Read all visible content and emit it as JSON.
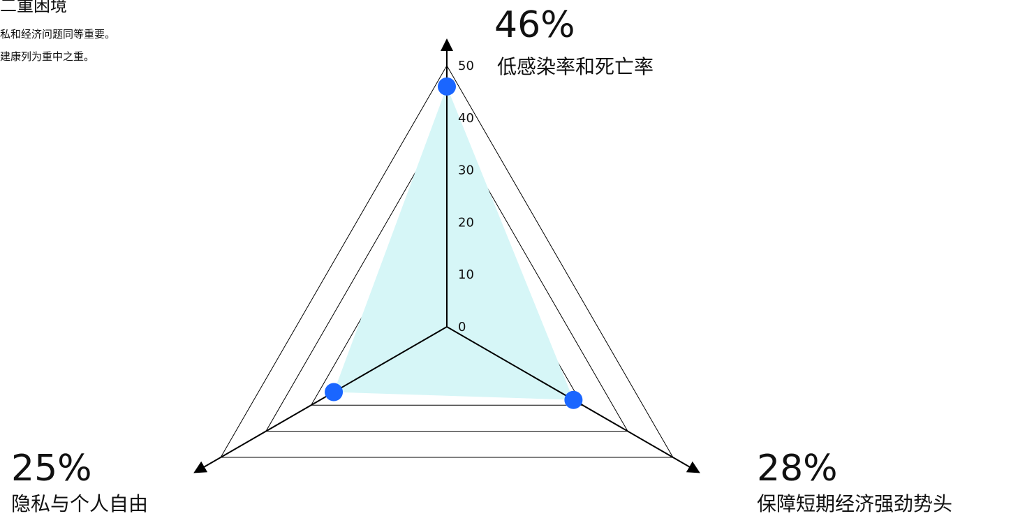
{
  "header": {
    "title": "二重困境",
    "lines": [
      "私和经济问题同等重要。",
      "建康列为重中之重。"
    ]
  },
  "chart_data": {
    "type": "radar",
    "axes": [
      {
        "name": "低感染率和死亡率",
        "value": 46,
        "value_label": "46%"
      },
      {
        "name": "保障短期经济强劲势头",
        "value": 28,
        "value_label": "28%"
      },
      {
        "name": "隐私与个人自由",
        "value": 25,
        "value_label": "25%"
      }
    ],
    "rlim": [
      0,
      50
    ],
    "ticks": [
      0,
      10,
      20,
      30,
      40,
      50
    ],
    "grid": true,
    "colors": {
      "fill": "#d6f6f7",
      "marker": "#1a66ff",
      "axis": "#000000"
    }
  }
}
